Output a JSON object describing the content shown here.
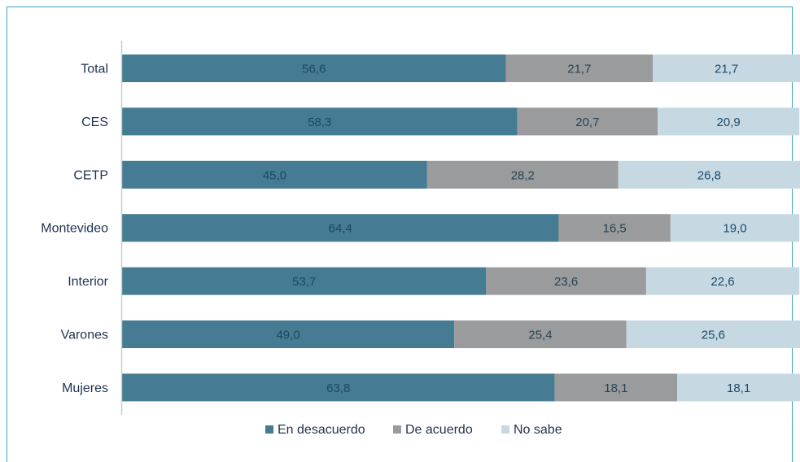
{
  "chart_data": {
    "type": "bar",
    "orientation": "horizontal",
    "stacked": true,
    "categories": [
      "Total",
      "CES",
      "CETP",
      "Montevideo",
      "Interior",
      "Varones",
      "Mujeres"
    ],
    "series": [
      {
        "name": "En desacuerdo",
        "color": "#457b93",
        "values": [
          56.6,
          58.3,
          45.0,
          64.4,
          53.7,
          49.0,
          63.8
        ]
      },
      {
        "name": "De acuerdo",
        "color": "#999b9d",
        "values": [
          21.7,
          20.7,
          28.2,
          16.5,
          23.6,
          25.4,
          18.1
        ]
      },
      {
        "name": "No sabe",
        "color": "#c6d9e3",
        "values": [
          21.7,
          20.9,
          26.8,
          19.0,
          22.6,
          25.6,
          18.1
        ]
      }
    ],
    "value_labels": [
      [
        "56,6",
        "58,3",
        "45,0",
        "64,4",
        "53,7",
        "49,0",
        "63,8"
      ],
      [
        "21,7",
        "20,7",
        "28,2",
        "16,5",
        "23,6",
        "25,4",
        "18,1"
      ],
      [
        "21,7",
        "20,9",
        "26,8",
        "19,0",
        "22,6",
        "25,6",
        "18,1"
      ]
    ],
    "value_label_colors": [
      "#1c4a5f",
      "#2a4352",
      "#1c4a6a"
    ],
    "xlim": [
      0,
      100
    ],
    "grid": false,
    "legend_position": "bottom",
    "axis_color": "#c8cdd2",
    "frame_color": "#3aa6c4"
  }
}
